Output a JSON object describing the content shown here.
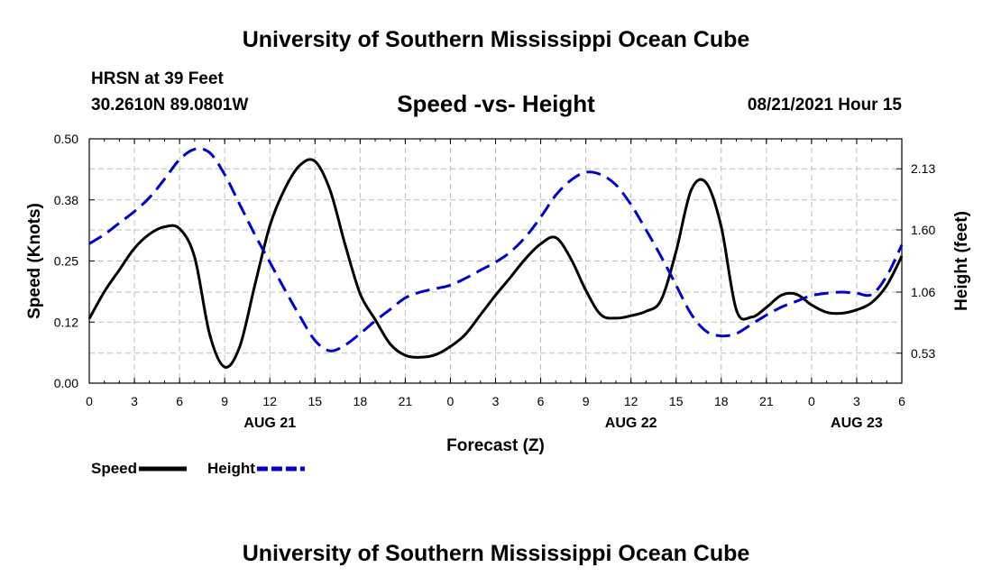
{
  "page": {
    "top_title": "University of Southern Mississippi Ocean Cube",
    "bottom_title": "University of Southern Mississippi Ocean Cube",
    "station": "HRSN at 39 Feet",
    "coords": "30.2610N  89.0801W",
    "datetime": "08/21/2021 Hour 15"
  },
  "chart_data": {
    "type": "line",
    "title": "Speed -vs- Height",
    "xlabel": "Forecast (Z)",
    "ylabel": "Speed (Knots)",
    "y2label": "Height (feet)",
    "xlim": [
      0,
      54
    ],
    "ylim": [
      0,
      0.5
    ],
    "y2lim": [
      0.27,
      2.39
    ],
    "x_ticks": [
      0,
      3,
      6,
      9,
      12,
      15,
      18,
      21,
      24,
      27,
      30,
      33,
      36,
      39,
      42,
      45,
      48,
      51,
      54
    ],
    "x_tick_labels": [
      "0",
      "3",
      "6",
      "9",
      "12",
      "15",
      "18",
      "21",
      "0",
      "3",
      "6",
      "9",
      "12",
      "15",
      "18",
      "21",
      "0",
      "3",
      "6"
    ],
    "date_labels": [
      {
        "label": "AUG 21",
        "x": 12
      },
      {
        "label": "AUG 22",
        "x": 36
      },
      {
        "label": "AUG 23",
        "x": 51
      }
    ],
    "y_ticks": [
      0,
      0.125,
      0.25,
      0.375,
      0.5
    ],
    "y_tick_labels": [
      "0.00",
      "0.12",
      "0.25",
      "0.38",
      "0.50"
    ],
    "y2_ticks": [
      0.53,
      1.06,
      1.6,
      2.13
    ],
    "y2_tick_labels": [
      "0.53",
      "1.06",
      "1.60",
      "2.13"
    ],
    "grid": true,
    "legend": [
      {
        "name": "Speed",
        "color": "#000000",
        "dashed": false
      },
      {
        "name": "Height",
        "color": "#0000cc",
        "dashed": true
      }
    ],
    "series": [
      {
        "name": "Speed",
        "axis": "left",
        "color": "#000000",
        "x": [
          0,
          1,
          2,
          3,
          4,
          5,
          6,
          7,
          8,
          9,
          10,
          11,
          12,
          13,
          14,
          15,
          16,
          17,
          18,
          19,
          20,
          21,
          22,
          23,
          24,
          25,
          26,
          27,
          28,
          29,
          30,
          31,
          32,
          33,
          34,
          35,
          36,
          37,
          38,
          39,
          40,
          41,
          42,
          43,
          44,
          45,
          46,
          47,
          48,
          49,
          50,
          51,
          52,
          53,
          54
        ],
        "values": [
          0.132,
          0.187,
          0.232,
          0.276,
          0.305,
          0.32,
          0.316,
          0.258,
          0.1,
          0.033,
          0.075,
          0.2,
          0.322,
          0.398,
          0.446,
          0.454,
          0.395,
          0.284,
          0.183,
          0.13,
          0.08,
          0.057,
          0.053,
          0.058,
          0.075,
          0.1,
          0.14,
          0.18,
          0.217,
          0.255,
          0.285,
          0.298,
          0.255,
          0.19,
          0.14,
          0.133,
          0.138,
          0.147,
          0.17,
          0.27,
          0.395,
          0.41,
          0.32,
          0.15,
          0.135,
          0.155,
          0.18,
          0.182,
          0.16,
          0.145,
          0.143,
          0.15,
          0.165,
          0.2,
          0.26
        ]
      },
      {
        "name": "Height",
        "axis": "right",
        "color": "#0000cc",
        "x": [
          0,
          1,
          2,
          3,
          4,
          5,
          6,
          7,
          8,
          9,
          10,
          11,
          12,
          13,
          14,
          15,
          16,
          17,
          18,
          19,
          20,
          21,
          22,
          23,
          24,
          25,
          26,
          27,
          28,
          29,
          30,
          31,
          32,
          33,
          34,
          35,
          36,
          37,
          38,
          39,
          40,
          41,
          42,
          43,
          44,
          45,
          46,
          47,
          48,
          49,
          50,
          51,
          52,
          53,
          54
        ],
        "values": [
          1.48,
          1.56,
          1.66,
          1.76,
          1.88,
          2.04,
          2.21,
          2.3,
          2.27,
          2.08,
          1.82,
          1.56,
          1.32,
          1.08,
          0.85,
          0.64,
          0.55,
          0.6,
          0.7,
          0.81,
          0.91,
          1.01,
          1.06,
          1.09,
          1.12,
          1.18,
          1.25,
          1.32,
          1.41,
          1.54,
          1.71,
          1.9,
          2.03,
          2.1,
          2.08,
          1.99,
          1.82,
          1.6,
          1.37,
          1.12,
          0.87,
          0.72,
          0.68,
          0.7,
          0.78,
          0.86,
          0.93,
          0.98,
          1.03,
          1.05,
          1.06,
          1.05,
          1.04,
          1.2,
          1.47
        ]
      }
    ]
  }
}
